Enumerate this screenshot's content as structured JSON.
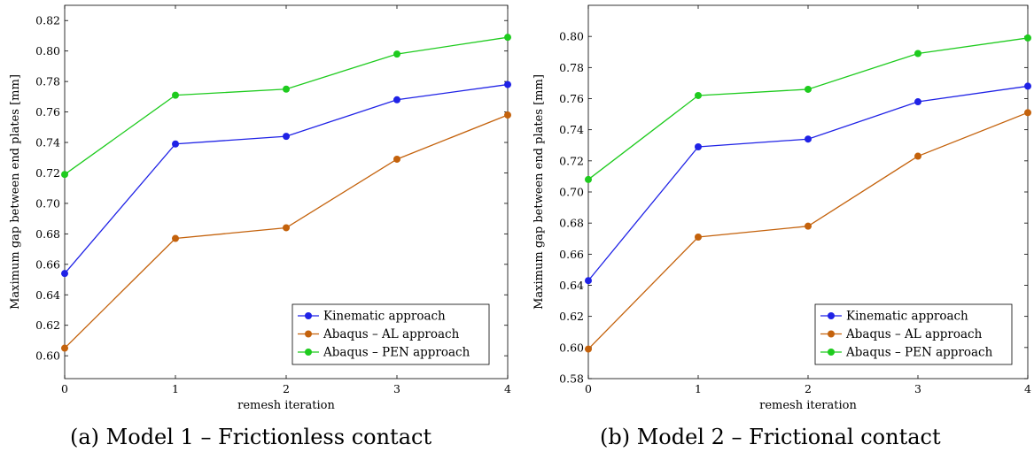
{
  "colors": {
    "kinematic": "#1f22e6",
    "al": "#c4620c",
    "pen": "#1ecb1e",
    "axis": "#000000",
    "background": "#ffffff"
  },
  "chart_data": [
    {
      "type": "line",
      "caption": "(a) Model 1 – Frictionless contact",
      "xlabel": "remesh iteration",
      "ylabel": "Maximum gap between end plates [mm]",
      "x": [
        0,
        1,
        2,
        3,
        4
      ],
      "xticks": [
        "0",
        "1",
        "2",
        "3",
        "4"
      ],
      "xlim": [
        0,
        4
      ],
      "ylim": [
        0.585,
        0.83
      ],
      "yticks": [
        "0.60",
        "0.62",
        "0.64",
        "0.66",
        "0.68",
        "0.70",
        "0.72",
        "0.74",
        "0.76",
        "0.78",
        "0.80",
        "0.82"
      ],
      "grid": false,
      "legend_position": "bottom-right",
      "series": [
        {
          "name": "Kinematic approach",
          "color_key": "kinematic",
          "values": [
            0.654,
            0.739,
            0.744,
            0.768,
            0.778
          ]
        },
        {
          "name": "Abaqus – AL approach",
          "color_key": "al",
          "values": [
            0.605,
            0.677,
            0.684,
            0.729,
            0.758
          ]
        },
        {
          "name": "Abaqus – PEN approach",
          "color_key": "pen",
          "values": [
            0.719,
            0.771,
            0.775,
            0.798,
            0.809
          ]
        }
      ]
    },
    {
      "type": "line",
      "caption": "(b) Model 2 – Frictional contact",
      "xlabel": "remesh iteration",
      "ylabel": "Maximum gap between end plates [mm]",
      "x": [
        0,
        1,
        2,
        3,
        4
      ],
      "xticks": [
        "0",
        "1",
        "2",
        "3",
        "4"
      ],
      "xlim": [
        0,
        4
      ],
      "ylim": [
        0.58,
        0.82
      ],
      "yticks": [
        "0.58",
        "0.60",
        "0.62",
        "0.64",
        "0.66",
        "0.68",
        "0.70",
        "0.72",
        "0.74",
        "0.76",
        "0.78",
        "0.80"
      ],
      "grid": false,
      "legend_position": "bottom-right",
      "series": [
        {
          "name": "Kinematic approach",
          "color_key": "kinematic",
          "values": [
            0.643,
            0.729,
            0.734,
            0.758,
            0.768
          ]
        },
        {
          "name": "Abaqus – AL approach",
          "color_key": "al",
          "values": [
            0.599,
            0.671,
            0.678,
            0.723,
            0.751
          ]
        },
        {
          "name": "Abaqus – PEN approach",
          "color_key": "pen",
          "values": [
            0.708,
            0.762,
            0.766,
            0.789,
            0.799
          ]
        }
      ]
    }
  ]
}
